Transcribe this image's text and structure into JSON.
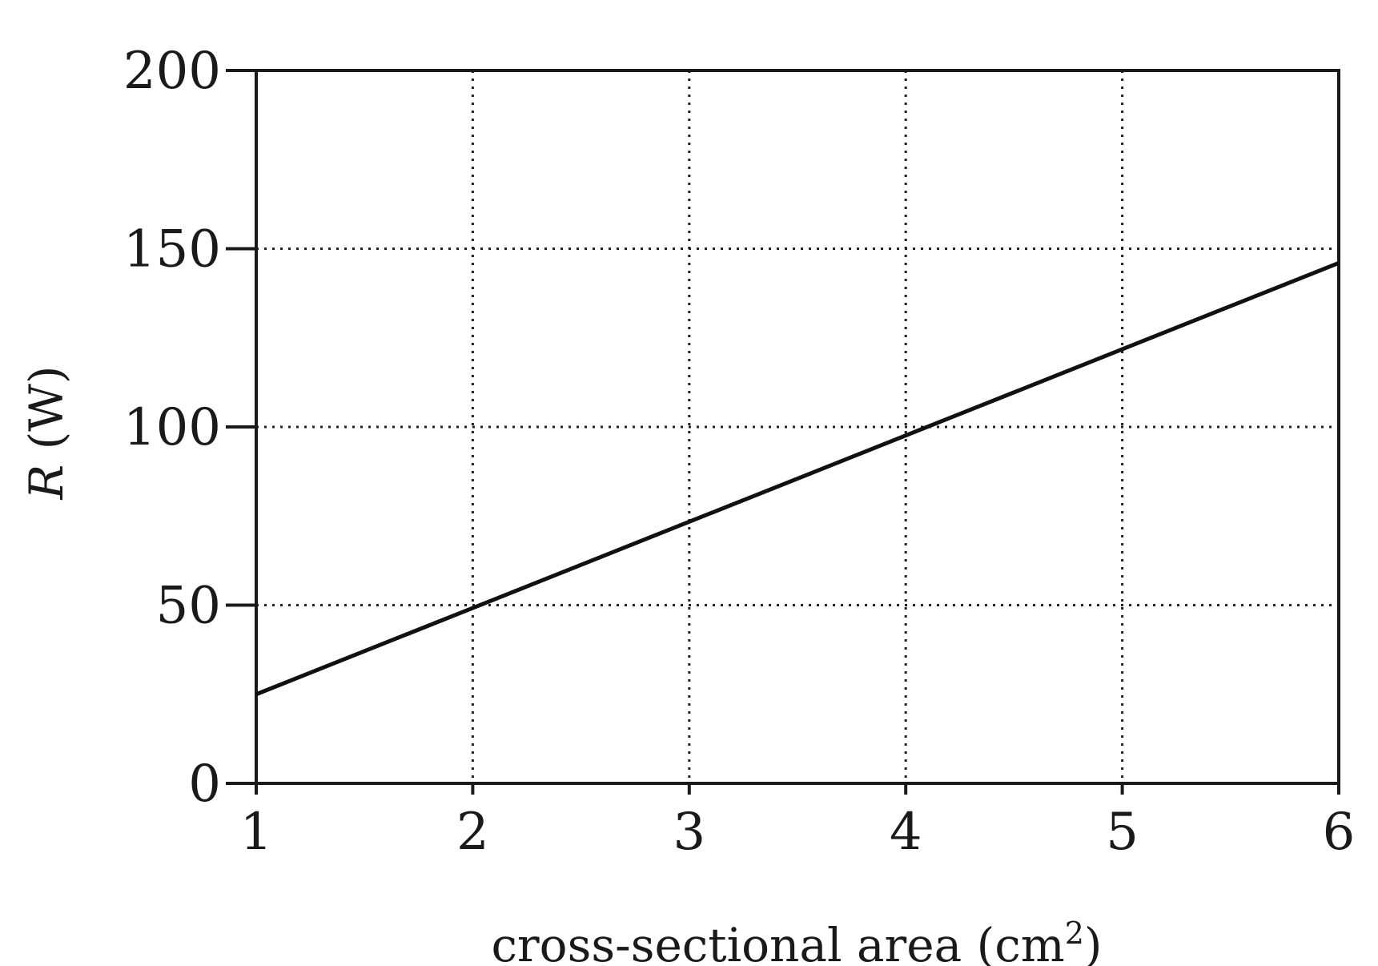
{
  "chart_data": {
    "type": "line",
    "xlabel": "cross-sectional area (cm",
    "xlabel_superscript": "2",
    "xlabel_suffix": ")",
    "ylabel_italic": "R",
    "ylabel_unit": " (W)",
    "xlim": [
      1,
      6
    ],
    "ylim": [
      0,
      200
    ],
    "x_ticks": [
      1,
      2,
      3,
      4,
      5,
      6
    ],
    "y_ticks": [
      0,
      50,
      100,
      150,
      200
    ],
    "grid": true,
    "series": [
      {
        "x": [
          1,
          6
        ],
        "y": [
          25,
          146
        ]
      }
    ]
  },
  "colors": {
    "line": "#111111",
    "grid": "#222222",
    "axes": "#1a1a1a"
  }
}
